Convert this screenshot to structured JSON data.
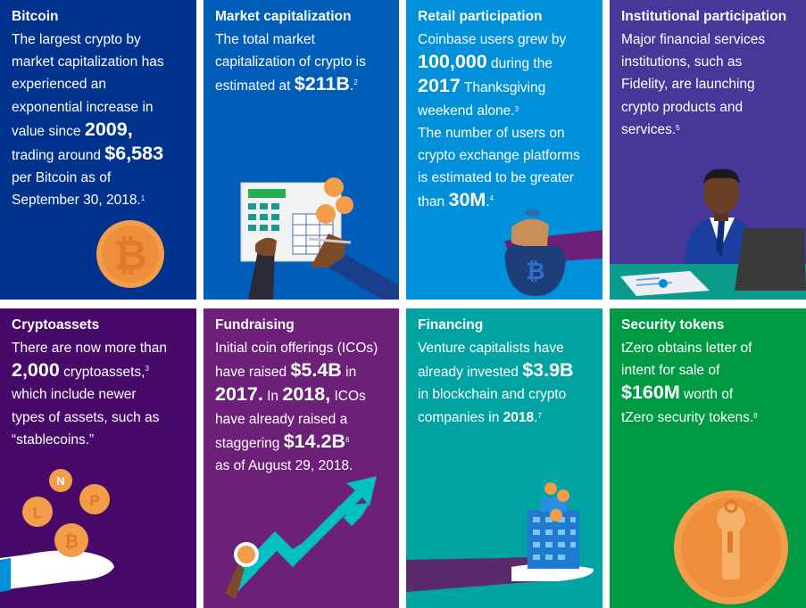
{
  "tiles": {
    "bitcoin": {
      "title": "Bitcoin",
      "l1": "The largest crypto by",
      "l2": "market capitalization has",
      "l3": "experienced an",
      "l4": "exponential increase in",
      "l5a": "value since ",
      "l5b": "2009,",
      "l6a": "trading around ",
      "l6b": "$6,583",
      "l7": "per Bitcoin as of",
      "l8": "September 30, 2018.",
      "l8n": "1",
      "coin_glyph": "₿",
      "color": "#00338D"
    },
    "market_cap": {
      "title": "Market capitalization",
      "l1": "The total market",
      "l2": "capitalization of crypto is",
      "l3a": "estimated at ",
      "l3b": "$211B",
      "l3c": ".",
      "l3n": "2",
      "color": "#005EB8"
    },
    "retail": {
      "title": "Retail participation",
      "l1": "Coinbase users grew by",
      "l2a": "100,000",
      "l2b": " during the",
      "l3a": "2017",
      "l3b": " Thanksgiving",
      "l4": "weekend alone.",
      "l4n": "3",
      "l5": "The number of users on",
      "l6": "crypto exchange platforms",
      "l7": "is estimated to be greater",
      "l8a": "than ",
      "l8b": "30M",
      "l8c": ".",
      "l8n": "4",
      "color": "#0091DA"
    },
    "institutional": {
      "title": "Institutional participation",
      "l1": "Major financial services",
      "l2": "institutions, such as",
      "l3": "Fidelity, are launching",
      "l4": "crypto products and",
      "l5": "services.",
      "l5n": "5",
      "color": "#483698"
    },
    "cryptoassets": {
      "title": "Cryptoassets",
      "l1": "There are now more than",
      "l2a": "2,000",
      "l2b": " cryptoassets,",
      "l2n": "3",
      "l3": "which include newer",
      "l4": "types of assets, such as",
      "l5": "“stablecoins.”",
      "coin_labels": [
        "N",
        "P",
        "L",
        "₿"
      ],
      "color": "#470A68"
    },
    "fundraising": {
      "title": "Fundraising",
      "l1": "Initial coin offerings (ICOs)",
      "l2a": "have raised ",
      "l2b": "$5.4B",
      "l2c": " in",
      "l3a": "2017.",
      "l3b": " In ",
      "l3c": "2018,",
      "l3d": " ICOs",
      "l4": "have already raised a",
      "l5a": "staggering ",
      "l5b": "$14.2B",
      "l5n": "6",
      "l6": "as of August 29, 2018.",
      "color": "#6D2077"
    },
    "financing": {
      "title": "Financing",
      "l1": "Venture capitalists have",
      "l2a": "already invested ",
      "l2b": "$3.9B",
      "l3": "in blockchain and crypto",
      "l4a": "companies in ",
      "l4b": "2018",
      "l4c": ".",
      "l4n": "7",
      "color": "#00A3A1"
    },
    "security": {
      "title": "Security tokens",
      "l1": "tZero obtains letter of",
      "l2": "intent for sale of",
      "l3a": "$160M",
      "l3b": " worth of",
      "l4": "tZero security tokens.",
      "l4n": "8",
      "color": "#009A44"
    }
  },
  "colors": {
    "coin_orange": "#F39C4A",
    "coin_dark": "#E07F2A",
    "accent_orange": "#EAAA00",
    "chart_teal": "#00C1C0"
  }
}
